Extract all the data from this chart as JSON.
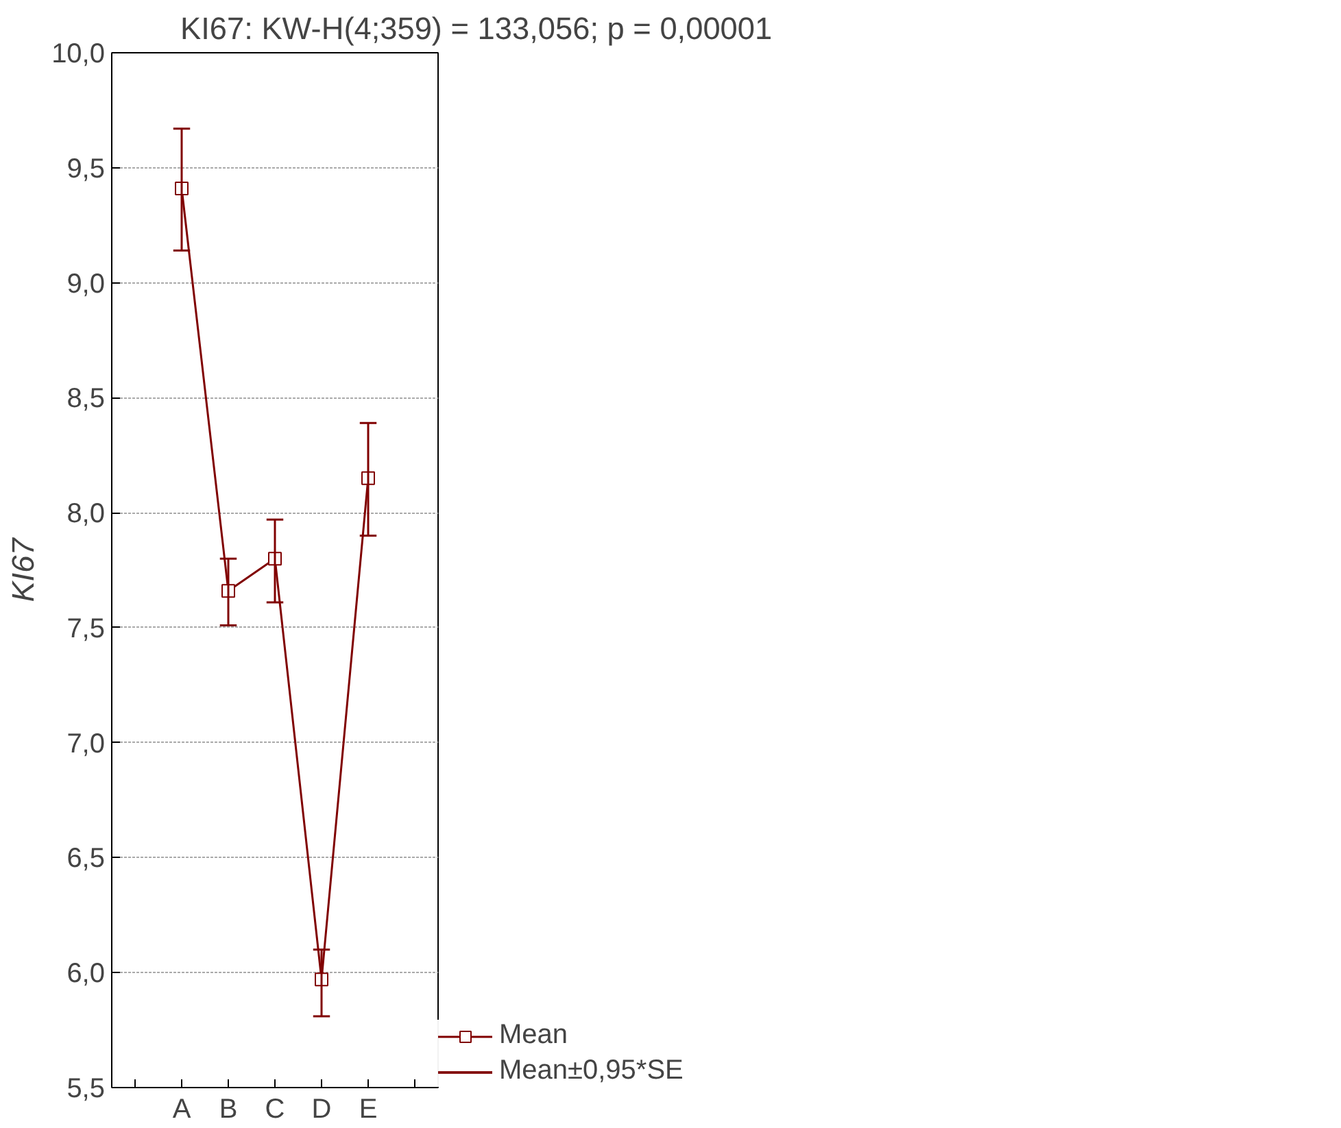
{
  "chart_data": {
    "type": "line",
    "title": "KI67: KW-H(4;359) = 133,056; p = 0,00001",
    "ylabel": "KI67",
    "categories": [
      null,
      "A",
      "B",
      "C",
      "D",
      "E",
      null
    ],
    "series": [
      {
        "name": "Mean",
        "color": "#800000",
        "values": [
          null,
          9.41,
          7.66,
          7.8,
          5.97,
          8.15,
          null
        ],
        "errors": [
          null,
          [
            9.14,
            9.67
          ],
          [
            7.51,
            7.8
          ],
          [
            7.61,
            7.97
          ],
          [
            5.81,
            6.1
          ],
          [
            7.9,
            8.39
          ],
          null
        ]
      }
    ],
    "annotations": [
      "Mean±0,95*SE"
    ],
    "ylim": [
      5.5,
      10.0
    ],
    "yticks": [
      {
        "value": 5.5,
        "label": "5,5"
      },
      {
        "value": 6.0,
        "label": "6,0"
      },
      {
        "value": 6.5,
        "label": "6,5"
      },
      {
        "value": 7.0,
        "label": "7,0"
      },
      {
        "value": 7.5,
        "label": "7,5"
      },
      {
        "value": 8.0,
        "label": "8,0"
      },
      {
        "value": 8.5,
        "label": "8,5"
      },
      {
        "value": 9.0,
        "label": "9,0"
      },
      {
        "value": 9.5,
        "label": "9,5"
      },
      {
        "value": 10.0,
        "label": "10,0"
      }
    ],
    "grid": "y",
    "legend": "bottom right",
    "marker": "square",
    "line_style": "solid"
  }
}
